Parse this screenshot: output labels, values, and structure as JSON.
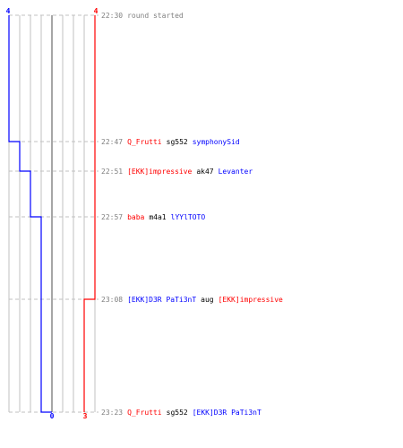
{
  "scores": {
    "blue_start": "4",
    "red_start": "4",
    "blue_end": "0",
    "red_end": "3"
  },
  "colors": {
    "blue_team": "#0000ff",
    "red_team": "#ff0000",
    "grid": "#c0c0c0",
    "center": "#808080",
    "dashed": "#c0c0c0",
    "text_gray": "#808080"
  },
  "events": [
    {
      "time": "22:30",
      "parts": [
        {
          "text": "round started",
          "team": "neutral"
        }
      ]
    },
    {
      "time": "22:47",
      "parts": [
        {
          "text": "Q_Frutti",
          "team": "red"
        },
        {
          "text": "sg552",
          "team": "none"
        },
        {
          "text": "symphonySid",
          "team": "blue"
        }
      ]
    },
    {
      "time": "22:51",
      "parts": [
        {
          "text": "[EKK]impressive",
          "team": "red"
        },
        {
          "text": "ak47",
          "team": "none"
        },
        {
          "text": "Levanter",
          "team": "blue"
        }
      ]
    },
    {
      "time": "22:57",
      "parts": [
        {
          "text": "baba",
          "team": "red"
        },
        {
          "text": "m4a1",
          "team": "none"
        },
        {
          "text": "lYYlTOTO",
          "team": "blue"
        }
      ]
    },
    {
      "time": "23:08",
      "parts": [
        {
          "text": "[EKK]D3R PaTi3nT",
          "team": "blue"
        },
        {
          "text": "aug",
          "team": "none"
        },
        {
          "text": "[EKK]impressive",
          "team": "red"
        }
      ]
    },
    {
      "time": "23:23",
      "parts": [
        {
          "text": "Q_Frutti",
          "team": "red"
        },
        {
          "text": "sg552",
          "team": "none"
        },
        {
          "text": "[EKK]D3R PaTi3nT",
          "team": "blue"
        }
      ]
    }
  ]
}
